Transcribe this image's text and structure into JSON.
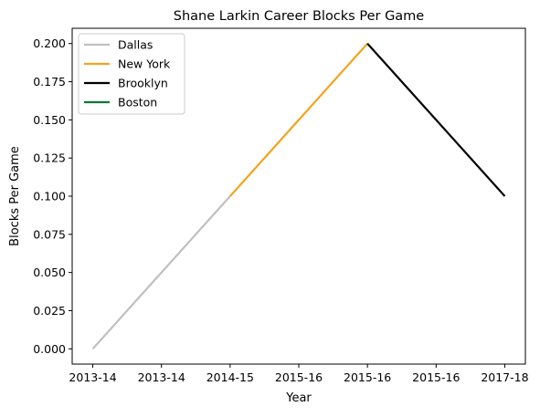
{
  "chart_data": {
    "type": "line",
    "title": "Shane Larkin Career Blocks Per Game",
    "xlabel": "Year",
    "ylabel": "Blocks Per Game",
    "x_ticks": [
      "2013-14",
      "2013-14",
      "2014-15",
      "2015-16",
      "2015-16",
      "2015-16",
      "2017-18"
    ],
    "x_tick_positions": [
      0,
      1,
      2,
      3,
      4,
      5,
      6
    ],
    "xlim": [
      -0.3,
      6.3
    ],
    "ylim": [
      -0.01,
      0.21
    ],
    "y_ticks": [
      0.0,
      0.025,
      0.05,
      0.075,
      0.1,
      0.125,
      0.15,
      0.175,
      0.2
    ],
    "y_tick_labels": [
      "0.000",
      "0.025",
      "0.050",
      "0.075",
      "0.100",
      "0.125",
      "0.150",
      "0.175",
      "0.200"
    ],
    "grid": false,
    "legend_position": "upper-left",
    "series": [
      {
        "name": "Dallas",
        "color": "#c0c0c0",
        "x": [
          0,
          2
        ],
        "y": [
          0.0,
          0.1
        ]
      },
      {
        "name": "New York",
        "color": "#f5a31a",
        "x": [
          2,
          4
        ],
        "y": [
          0.1,
          0.2
        ]
      },
      {
        "name": "Brooklyn",
        "color": "#000000",
        "x": [
          4,
          6
        ],
        "y": [
          0.2,
          0.1
        ]
      },
      {
        "name": "Boston",
        "color": "#007a33",
        "x": [],
        "y": []
      }
    ]
  }
}
